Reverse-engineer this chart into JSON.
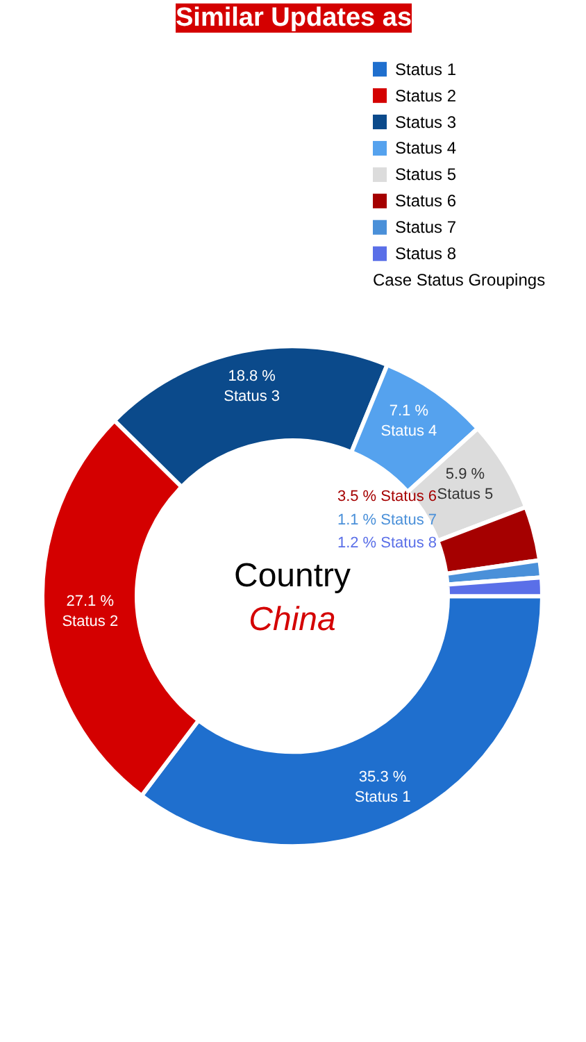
{
  "chart_data": {
    "type": "donut",
    "title": "Similar Updates as",
    "categories": [
      "Status 1",
      "Status 2",
      "Status 3",
      "Status 4",
      "Status 5",
      "Status 6",
      "Status 7",
      "Status 8"
    ],
    "values": [
      35.3,
      27.1,
      18.8,
      7.1,
      5.9,
      3.5,
      1.1,
      1.2
    ],
    "value_labels": [
      "35.3 %",
      "27.1 %",
      "18.8 %",
      "7.1 %",
      "5.9 %",
      "3.5 %",
      "1.1 %",
      "1.2 %"
    ],
    "colors": [
      "#1f6fce",
      "#d40000",
      "#0b4a8b",
      "#55a2ee",
      "#dcdcdc",
      "#a50000",
      "#4a90d9",
      "#5a6fe8"
    ],
    "legend": "top right",
    "legend_title": "Case Status Groupings",
    "annotations": [
      "Country",
      "China"
    ]
  }
}
